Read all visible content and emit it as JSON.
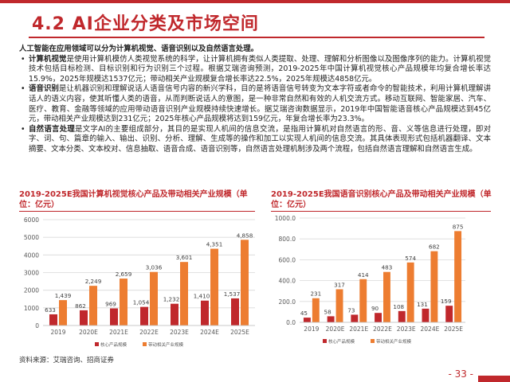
{
  "title": "4.2 AI企业分类及市场空间",
  "lead": "人工智能在应用领域可以分为计算机视觉、语音识别以及自然语言处理。",
  "bullets": [
    {
      "keyword": "计算机视觉",
      "text": "是使用计算机模仿人类视觉系统的科学，让计算机拥有类似人类提取、处理、理解和分析图像以及图像序列的能力。计算机视觉技术包括目标检测、目标识别和行为识别三个过程。根据艾瑞咨询预测，2019-2025年中国计算机视觉核心产品规模年均复合增长率达15.9%，2025年规模达1537亿元；带动相关产业规模复合增长率达22.5%，2025年规模达4858亿元。"
    },
    {
      "keyword": "语音识别",
      "text": "是让机器识别和理解说话人语音信号内容的新兴学科，目的是将语音信号转变为文本字符或者命令的智能技术，利用计算机理解讲话人的语义内容，使其听懂人类的语音，从而判断说话人的意图，是一种非常自然和有效的人机交流方式。移动互联网、智能家居、汽车、医疗、教育、金融等领域的应用带动语音识别产业规模持续快速增长。据艾瑞咨询数据显示，2019年中国智能语音核心产品规模达到45亿元，带动相关产业规模达到231亿元；2025年核心产品规模将达到159亿元，年复合增长率为23.3%。"
    },
    {
      "keyword": "自然语言处理",
      "text": "是文字AI的主要组成部分，其目的是实现人机间的信息交流，是指用计算机对自然语言的形、音、义等信息进行处理，即对字、词、句、篇章的输入、输出、识别、分析、理解、生成等的操作和加工以实现人机间的信息交流。其具体表现形式包括机器翻译、文本摘要、文本分类、文本校对、信息抽取、语音合成、语音识别等，自然语言处理机制涉及两个流程，包括自然语言理解和自然语言生成。"
    }
  ],
  "chart_titles": [
    "2019-2025E我国计算机视觉核心产品及带动相关产业规模（单位：亿元）",
    "2019-2025E我国语音识别核心产品及带动相关产业规模（单位：亿元）"
  ],
  "colors": {
    "core": "#c0282c",
    "related": "#ed7d31"
  },
  "chart_data": [
    {
      "type": "bar",
      "title": "2019-2025E我国计算机视觉核心产品及带动相关产业规模（单位：亿元）",
      "categories": [
        "2019",
        "2020E",
        "2021E",
        "2022E",
        "2023E",
        "2024E",
        "2025E"
      ],
      "series": [
        {
          "name": "核心产品规模",
          "values": [
            633,
            862,
            969,
            1054,
            1232,
            1410,
            1537
          ]
        },
        {
          "name": "带动相关产业规模",
          "values": [
            1439,
            2249,
            2659,
            3036,
            3601,
            4351,
            4858
          ]
        }
      ],
      "ylim": [
        0,
        6000
      ],
      "yticks": [
        0,
        1000,
        2000,
        3000,
        4000,
        5000,
        6000
      ],
      "tick_labels": [
        "0",
        "1000",
        "2000",
        "3000",
        "4000",
        "5000",
        "6000"
      ],
      "data_labels": [
        [
          "633",
          "862",
          "969",
          "1,054",
          "1,232",
          "1,410",
          "1,537"
        ],
        [
          "1,439",
          "2,249",
          "2,659",
          "3,036",
          "3,601",
          "4,351",
          "4,858"
        ]
      ],
      "grid": true,
      "legend": "bottom"
    },
    {
      "type": "bar",
      "title": "2019-2025E我国语音识别核心产品及带动相关产业规模（单位：亿元）",
      "categories": [
        "2019",
        "2020E",
        "2021E",
        "2022E",
        "2023E",
        "2024E",
        "2025E"
      ],
      "series": [
        {
          "name": "核心产品规模",
          "values": [
            45,
            58,
            73,
            90,
            108,
            131,
            159
          ]
        },
        {
          "name": "带动相关产业规模",
          "values": [
            231,
            317,
            414,
            483,
            574,
            682,
            875
          ]
        }
      ],
      "ylim": [
        0,
        1000
      ],
      "yticks": [
        0,
        200,
        400,
        600,
        800,
        1000
      ],
      "tick_labels": [
        "0.0",
        "200.0",
        "400.0",
        "600.0",
        "800.0",
        "1000.0"
      ],
      "data_labels": [
        [
          "45",
          "58",
          "73",
          "90",
          "108",
          "131",
          "159"
        ],
        [
          "231",
          "317",
          "414",
          "483",
          "574",
          "682",
          "875"
        ]
      ],
      "grid": true,
      "legend": "bottom"
    }
  ],
  "source": "资料来源：艾瑞咨询、招商证券",
  "page_number": "- 33 -"
}
